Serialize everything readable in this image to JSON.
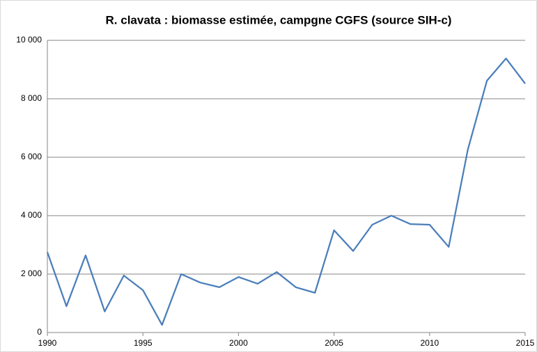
{
  "chart_data": {
    "type": "line",
    "title": "R. clavata : biomasse estimée, campgne CGFS (source SIH-c)",
    "x": [
      1990,
      1991,
      1992,
      1993,
      1994,
      1995,
      1996,
      1997,
      1998,
      1999,
      2000,
      2001,
      2002,
      2003,
      2004,
      2005,
      2006,
      2007,
      2008,
      2009,
      2010,
      2011,
      2012,
      2013,
      2014,
      2015
    ],
    "series": [
      {
        "name": "R. clavata",
        "color": "#4a7ebb",
        "values": [
          2750,
          900,
          2640,
          720,
          1950,
          1450,
          260,
          2000,
          1710,
          1550,
          1900,
          1670,
          2070,
          1550,
          1360,
          3500,
          2790,
          3690,
          4000,
          3710,
          3690,
          2930,
          6260,
          8620,
          9380,
          8520
        ]
      }
    ],
    "xlim": [
      1990,
      2015
    ],
    "xticks": [
      1990,
      1995,
      2000,
      2005,
      2010,
      2015
    ],
    "ylim": [
      0,
      10000
    ],
    "yticks": [
      0,
      {
        "value": 2000,
        "label": "2 000"
      },
      {
        "value": 4000,
        "label": "4 000"
      },
      {
        "value": 6000,
        "label": "6 000"
      },
      {
        "value": 8000,
        "label": "8 000"
      },
      {
        "value": 10000,
        "label": "10 000"
      }
    ],
    "grid": true
  }
}
